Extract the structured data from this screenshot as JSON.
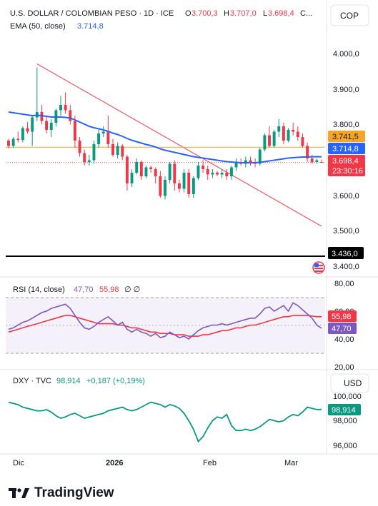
{
  "header": {
    "symbol": "U.S. DOLLAR / COLOMBIAN PESO · 1D · ICE",
    "o_label": "O",
    "o_value": "3.700,3",
    "h_label": "H",
    "h_value": "3.707,0",
    "l_label": "L",
    "l_value": "3.698,4",
    "c_label": "C...",
    "currency_button": "COP",
    "ema_label": "EMA (50, close)",
    "ema_value": "3.714,8"
  },
  "price_axis": {
    "ticks": [
      "4.000,0",
      "3.900,0",
      "3.800,0",
      "3.600,0",
      "3.500,0",
      "3.400,0"
    ],
    "tags": {
      "level_line": "3.741,5",
      "ema": "3.714,8",
      "last": "3.698,4",
      "countdown": "23:30:16",
      "support": "3.436,0"
    }
  },
  "rsi": {
    "label": "RSI (14, close)",
    "rsi_value": "47,70",
    "ma_value": "55,98",
    "extra": "∅ ∅",
    "ticks": [
      "80,00",
      "60,00",
      "40,00",
      "20,00"
    ],
    "tag_ma": "55,98",
    "tag_rsi": "47,70"
  },
  "dxy": {
    "label": "DXY · TVC",
    "value": "98,914",
    "change": "+0,187 (+0,19%)",
    "currency_button": "USD",
    "ticks": [
      "100,000",
      "98,000",
      "96,000"
    ],
    "tag": "98,914"
  },
  "time_axis": {
    "labels": [
      "Dic",
      "2026",
      "Feb",
      "Mar"
    ]
  },
  "brand": {
    "name": "TradingView"
  },
  "colors": {
    "up": "#089981",
    "down": "#f23645",
    "ema": "#2962ff",
    "rsi": "#7e57c2",
    "rsi_ma": "#f23645",
    "dxy": "#089981",
    "trendline": "#f7525f",
    "level": "#f5a623",
    "support": "#000000"
  },
  "chart_data": [
    {
      "type": "candlestick",
      "title": "U.S. DOLLAR / COLOMBIAN PESO · 1D · ICE",
      "ylim": [
        3400,
        4000
      ],
      "x": [
        "2025-11-28",
        "2025-12-01",
        "2025-12-02",
        "2025-12-03",
        "2025-12-04",
        "2025-12-05",
        "2025-12-08",
        "2025-12-09",
        "2025-12-10",
        "2025-12-11",
        "2025-12-12",
        "2025-12-15",
        "2025-12-16",
        "2025-12-17",
        "2025-12-18",
        "2025-12-19",
        "2025-12-22",
        "2025-12-23",
        "2025-12-24",
        "2025-12-26",
        "2025-12-29",
        "2025-12-30",
        "2025-12-31",
        "2026-01-02",
        "2026-01-05",
        "2026-01-06",
        "2026-01-07",
        "2026-01-08",
        "2026-01-09",
        "2026-01-12",
        "2026-01-13",
        "2026-01-14",
        "2026-01-15",
        "2026-01-16",
        "2026-01-19",
        "2026-01-20",
        "2026-01-21",
        "2026-01-22",
        "2026-01-23",
        "2026-01-26",
        "2026-01-27",
        "2026-01-28",
        "2026-01-29",
        "2026-01-30",
        "2026-02-02",
        "2026-02-03",
        "2026-02-04",
        "2026-02-05",
        "2026-02-06",
        "2026-02-09",
        "2026-02-10",
        "2026-02-11",
        "2026-02-12",
        "2026-02-13",
        "2026-02-16",
        "2026-02-17",
        "2026-02-18",
        "2026-02-19",
        "2026-02-20",
        "2026-02-23",
        "2026-02-24",
        "2026-02-25",
        "2026-02-26",
        "2026-02-27",
        "2026-03-02",
        "2026-03-03",
        "2026-03-04"
      ],
      "ohlc": [
        [
          3760,
          3765,
          3738,
          3745
        ],
        [
          3745,
          3770,
          3740,
          3765
        ],
        [
          3765,
          3785,
          3755,
          3762
        ],
        [
          3762,
          3800,
          3755,
          3795
        ],
        [
          3795,
          3812,
          3780,
          3785
        ],
        [
          3785,
          3830,
          3745,
          3825
        ],
        [
          3825,
          3965,
          3815,
          3840
        ],
        [
          3840,
          3860,
          3805,
          3815
        ],
        [
          3815,
          3830,
          3780,
          3790
        ],
        [
          3790,
          3820,
          3770,
          3810
        ],
        [
          3810,
          3850,
          3800,
          3845
        ],
        [
          3845,
          3885,
          3830,
          3860
        ],
        [
          3860,
          3895,
          3835,
          3845
        ],
        [
          3845,
          3860,
          3805,
          3815
        ],
        [
          3815,
          3830,
          3740,
          3760
        ],
        [
          3760,
          3770,
          3715,
          3725
        ],
        [
          3725,
          3735,
          3690,
          3700
        ],
        [
          3700,
          3720,
          3690,
          3705
        ],
        [
          3705,
          3760,
          3695,
          3750
        ],
        [
          3750,
          3790,
          3740,
          3780
        ],
        [
          3780,
          3800,
          3770,
          3785
        ],
        [
          3785,
          3830,
          3740,
          3750
        ],
        [
          3750,
          3765,
          3715,
          3720
        ],
        [
          3720,
          3755,
          3710,
          3745
        ],
        [
          3745,
          3750,
          3705,
          3715
        ],
        [
          3715,
          3720,
          3620,
          3640
        ],
        [
          3640,
          3680,
          3630,
          3670
        ],
        [
          3670,
          3710,
          3665,
          3700
        ],
        [
          3700,
          3705,
          3650,
          3660
        ],
        [
          3660,
          3690,
          3655,
          3685
        ],
        [
          3685,
          3690,
          3670,
          3680
        ],
        [
          3680,
          3685,
          3640,
          3660
        ],
        [
          3660,
          3675,
          3600,
          3605
        ],
        [
          3605,
          3660,
          3595,
          3650
        ],
        [
          3650,
          3700,
          3640,
          3695
        ],
        [
          3695,
          3705,
          3620,
          3640
        ],
        [
          3640,
          3650,
          3615,
          3625
        ],
        [
          3625,
          3680,
          3615,
          3670
        ],
        [
          3670,
          3680,
          3600,
          3610
        ],
        [
          3610,
          3660,
          3600,
          3655
        ],
        [
          3655,
          3700,
          3650,
          3690
        ],
        [
          3690,
          3705,
          3670,
          3680
        ],
        [
          3680,
          3690,
          3650,
          3665
        ],
        [
          3665,
          3680,
          3655,
          3670
        ],
        [
          3670,
          3675,
          3660,
          3665
        ],
        [
          3665,
          3680,
          3655,
          3670
        ],
        [
          3670,
          3680,
          3650,
          3660
        ],
        [
          3660,
          3690,
          3650,
          3685
        ],
        [
          3685,
          3710,
          3675,
          3700
        ],
        [
          3700,
          3710,
          3690,
          3695
        ],
        [
          3695,
          3715,
          3685,
          3705
        ],
        [
          3705,
          3715,
          3690,
          3700
        ],
        [
          3700,
          3710,
          3685,
          3695
        ],
        [
          3695,
          3740,
          3690,
          3735
        ],
        [
          3735,
          3780,
          3730,
          3775
        ],
        [
          3775,
          3800,
          3740,
          3745
        ],
        [
          3745,
          3790,
          3740,
          3785
        ],
        [
          3785,
          3820,
          3770,
          3800
        ],
        [
          3800,
          3810,
          3750,
          3760
        ],
        [
          3760,
          3795,
          3755,
          3790
        ],
        [
          3790,
          3810,
          3775,
          3785
        ],
        [
          3785,
          3800,
          3760,
          3770
        ],
        [
          3770,
          3780,
          3740,
          3745
        ],
        [
          3745,
          3755,
          3700,
          3710
        ],
        [
          3710,
          3720,
          3695,
          3700
        ],
        [
          3700,
          3710,
          3695,
          3705
        ],
        [
          3700,
          3707,
          3698.4,
          3698.4
        ]
      ],
      "ema_50": [
        3840,
        3838,
        3836,
        3834,
        3832,
        3830,
        3831,
        3830,
        3828,
        3826,
        3826,
        3826,
        3825,
        3823,
        3818,
        3812,
        3806,
        3800,
        3796,
        3793,
        3790,
        3786,
        3781,
        3777,
        3772,
        3766,
        3761,
        3757,
        3753,
        3749,
        3746,
        3742,
        3737,
        3733,
        3730,
        3727,
        3724,
        3721,
        3718,
        3715,
        3713,
        3711,
        3709,
        3707,
        3705,
        3703,
        3701,
        3700,
        3699,
        3698,
        3698,
        3698,
        3698,
        3699,
        3701,
        3703,
        3705,
        3707,
        3709,
        3711,
        3712,
        3713,
        3714,
        3714,
        3714.8,
        3714.8,
        3714.8
      ],
      "level_line": 3741.5,
      "support_line": 3436.0,
      "trendline": [
        [
          "2025-12-08",
          3975
        ],
        [
          "2026-03-04",
          3520
        ]
      ]
    },
    {
      "type": "line",
      "title": "RSI (14, close)",
      "ylim": [
        20,
        80
      ],
      "bands": [
        30,
        70
      ],
      "series": [
        {
          "name": "RSI",
          "values": [
            47,
            48,
            50,
            52,
            53,
            55,
            57,
            59,
            60,
            62,
            63,
            64,
            65,
            62,
            57,
            52,
            48,
            47,
            49,
            52,
            54,
            56,
            53,
            50,
            52,
            47,
            45,
            47,
            45,
            44,
            42,
            44,
            41,
            42,
            45,
            43,
            41,
            42,
            40,
            43,
            46,
            48,
            49,
            50,
            50,
            51,
            50,
            51,
            52,
            53,
            54,
            55,
            55,
            58,
            62,
            63,
            60,
            62,
            64,
            60,
            66,
            64,
            61,
            58,
            55,
            50,
            47.7
          ]
        },
        {
          "name": "MA",
          "values": [
            45,
            46,
            47,
            48,
            49,
            50,
            51,
            52,
            53,
            54,
            55,
            56,
            57,
            57,
            56,
            55,
            54,
            53,
            52,
            51,
            51,
            51,
            51,
            50,
            50,
            49,
            48,
            48,
            47,
            46,
            45,
            45,
            44,
            44,
            44,
            43,
            43,
            43,
            42,
            42,
            42,
            43,
            43,
            44,
            45,
            46,
            46,
            47,
            48,
            48,
            49,
            50,
            50,
            51,
            52,
            53,
            54,
            55,
            56,
            56,
            57,
            57,
            57,
            57,
            56.5,
            56,
            55.98
          ]
        }
      ]
    },
    {
      "type": "line",
      "title": "DXY · TVC",
      "ylim": [
        95.5,
        101
      ],
      "series": [
        {
          "name": "DXY",
          "values": [
            99.5,
            99.4,
            99.3,
            99.1,
            99.0,
            98.9,
            98.8,
            98.8,
            98.9,
            98.7,
            98.4,
            98.2,
            98.3,
            98.5,
            98.6,
            98.4,
            98.2,
            98.3,
            98.4,
            98.5,
            98.6,
            98.8,
            98.9,
            99.0,
            99.1,
            98.9,
            98.8,
            98.9,
            99.1,
            99.3,
            99.5,
            99.4,
            99.3,
            99.1,
            99.3,
            99.2,
            99.0,
            98.6,
            98.0,
            97.3,
            96.3,
            96.7,
            97.4,
            98.0,
            98.3,
            98.2,
            98.5,
            97.6,
            97.2,
            97.2,
            97.3,
            97.2,
            97.3,
            97.5,
            97.8,
            98.1,
            98.0,
            97.9,
            98.0,
            98.3,
            98.5,
            98.4,
            98.7,
            99.1,
            99.0,
            98.9,
            98.914
          ]
        }
      ]
    }
  ]
}
